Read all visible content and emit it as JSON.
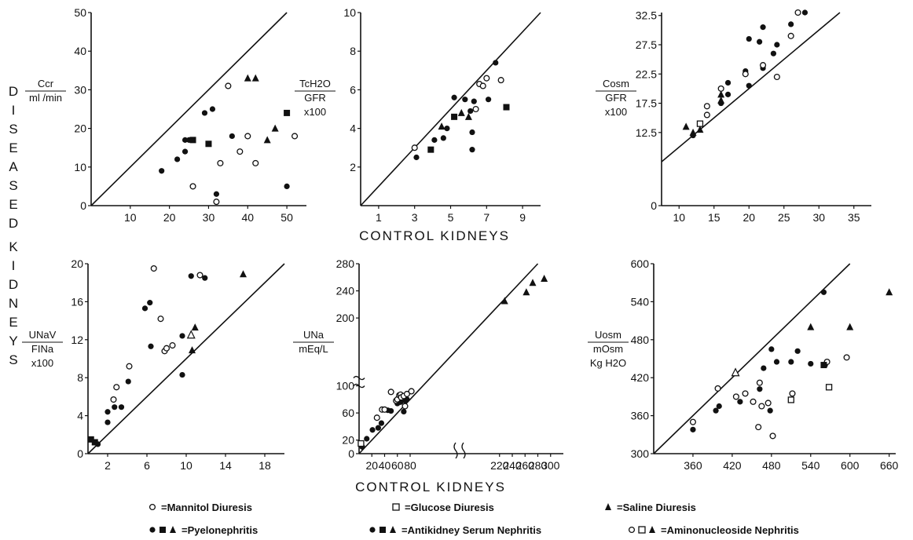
{
  "figure": {
    "left_label": "DISEASED",
    "left_label2": "KIDNEYS",
    "xlabel_top": "CONTROL KIDNEYS",
    "xlabel_bottom": "CONTROL KIDNEYS"
  },
  "legend": [
    {
      "symbols": "○",
      "text": "=Mannitol Diuresis"
    },
    {
      "symbols": "□",
      "text": "=Glucose Diuresis"
    },
    {
      "symbols": "▲",
      "text": "=Saline Diuresis"
    },
    {
      "symbols": "●■▲",
      "text": "=Pyelonephritis"
    },
    {
      "symbols": "●■▲",
      "text": "=Antikidney Serum Nephritis"
    },
    {
      "symbols": "○□▲",
      "text": "=Aminonucleoside Nephritis"
    }
  ],
  "chart_data": [
    {
      "type": "scatter",
      "ylabel_lines": [
        "Ccr",
        "ml /min"
      ],
      "xlim": [
        0,
        55
      ],
      "ylim": [
        0,
        50
      ],
      "xticks": [
        10,
        20,
        30,
        40,
        50
      ],
      "yticks": [
        0,
        10,
        20,
        30,
        40,
        50
      ],
      "identity_line": true,
      "series": [
        {
          "marker": "filled-circle",
          "points": [
            [
              18,
              9
            ],
            [
              22,
              12
            ],
            [
              24,
              14
            ],
            [
              24,
              17
            ],
            [
              25,
              17
            ],
            [
              29,
              24
            ],
            [
              31,
              25
            ],
            [
              32,
              3
            ],
            [
              36,
              18
            ],
            [
              50,
              5
            ]
          ]
        },
        {
          "marker": "open-circle",
          "points": [
            [
              26,
              5
            ],
            [
              32,
              1
            ],
            [
              33,
              11
            ],
            [
              35,
              31
            ],
            [
              38,
              14
            ],
            [
              40,
              18
            ],
            [
              42,
              11
            ],
            [
              52,
              18
            ]
          ]
        },
        {
          "marker": "filled-square",
          "points": [
            [
              26,
              17
            ],
            [
              30,
              16
            ],
            [
              50,
              24
            ]
          ]
        },
        {
          "marker": "filled-triangle",
          "points": [
            [
              40,
              33
            ],
            [
              42,
              33
            ],
            [
              45,
              17
            ],
            [
              47,
              20
            ]
          ]
        }
      ]
    },
    {
      "type": "scatter",
      "ylabel_lines": [
        "TcH2O",
        "GFR",
        "x100"
      ],
      "xlim": [
        0,
        10
      ],
      "ylim": [
        0,
        10
      ],
      "xticks": [
        1,
        3,
        5,
        7,
        9
      ],
      "yticks": [
        2,
        4,
        6,
        8,
        10
      ],
      "identity_line": true,
      "series": [
        {
          "marker": "filled-circle",
          "points": [
            [
              3.1,
              2.5
            ],
            [
              4.1,
              3.4
            ],
            [
              4.6,
              3.5
            ],
            [
              4.8,
              4.0
            ],
            [
              5.2,
              5.6
            ],
            [
              5.8,
              5.5
            ],
            [
              6.1,
              4.9
            ],
            [
              6.2,
              2.9
            ],
            [
              6.2,
              3.8
            ],
            [
              6.3,
              5.4
            ],
            [
              7.1,
              5.5
            ],
            [
              7.5,
              7.4
            ]
          ]
        },
        {
          "marker": "open-circle",
          "points": [
            [
              3.0,
              3.0
            ],
            [
              6.4,
              5.0
            ],
            [
              6.6,
              6.3
            ],
            [
              6.8,
              6.2
            ],
            [
              7.0,
              6.6
            ],
            [
              7.8,
              6.5
            ]
          ]
        },
        {
          "marker": "filled-square",
          "points": [
            [
              3.9,
              2.9
            ],
            [
              5.2,
              4.6
            ],
            [
              8.1,
              5.1
            ]
          ]
        },
        {
          "marker": "filled-triangle",
          "points": [
            [
              4.5,
              4.1
            ],
            [
              5.6,
              4.8
            ],
            [
              6.0,
              4.6
            ]
          ]
        }
      ]
    },
    {
      "type": "scatter",
      "ylabel_lines": [
        "Cosm",
        "GFR",
        "x100"
      ],
      "xlim": [
        7.5,
        37.5
      ],
      "ylim": [
        0,
        33
      ],
      "xticks": [
        10,
        15,
        20,
        25,
        30,
        35
      ],
      "yticks": [
        0,
        12.5,
        17.5,
        22.5,
        27.5,
        32.5
      ],
      "identity_line": true,
      "series": [
        {
          "marker": "filled-circle",
          "points": [
            [
              12,
              12
            ],
            [
              16,
              17.5
            ],
            [
              17,
              19
            ],
            [
              17,
              21
            ],
            [
              19.5,
              23
            ],
            [
              20,
              20.5
            ],
            [
              20,
              28.5
            ],
            [
              21.5,
              28
            ],
            [
              22,
              23.5
            ],
            [
              22,
              30.5
            ],
            [
              23.5,
              26
            ],
            [
              24,
              27.5
            ],
            [
              26,
              31
            ],
            [
              28,
              33
            ]
          ]
        },
        {
          "marker": "open-circle",
          "points": [
            [
              14,
              15.5
            ],
            [
              14,
              17
            ],
            [
              16,
              20
            ],
            [
              19.5,
              22.5
            ],
            [
              22,
              24
            ],
            [
              24,
              22
            ],
            [
              26,
              29
            ],
            [
              27,
              33
            ]
          ]
        },
        {
          "marker": "open-square",
          "points": [
            [
              13,
              14
            ]
          ]
        },
        {
          "marker": "filled-triangle",
          "points": [
            [
              11,
              13.5
            ],
            [
              12,
              12.5
            ],
            [
              13,
              13
            ],
            [
              16,
              18
            ],
            [
              16,
              19
            ]
          ]
        }
      ]
    },
    {
      "type": "scatter",
      "ylabel_lines": [
        "UNaV",
        "FINa",
        "x100"
      ],
      "xlim": [
        0,
        20
      ],
      "ylim": [
        0,
        20
      ],
      "xticks": [
        2,
        6,
        10,
        14,
        18
      ],
      "yticks": [
        0,
        4,
        8,
        12,
        16,
        20
      ],
      "identity_line": true,
      "series": [
        {
          "marker": "filled-circle",
          "points": [
            [
              1.0,
              1.0
            ],
            [
              2.0,
              3.3
            ],
            [
              2.0,
              4.4
            ],
            [
              2.7,
              4.9
            ],
            [
              3.4,
              4.9
            ],
            [
              4.1,
              7.6
            ],
            [
              5.8,
              15.3
            ],
            [
              6.3,
              15.9
            ],
            [
              6.4,
              11.3
            ],
            [
              9.6,
              8.3
            ],
            [
              9.6,
              12.4
            ],
            [
              10.5,
              18.7
            ],
            [
              11.9,
              18.5
            ]
          ]
        },
        {
          "marker": "open-circle",
          "points": [
            [
              2.6,
              5.7
            ],
            [
              2.9,
              7.0
            ],
            [
              4.2,
              9.2
            ],
            [
              6.7,
              19.5
            ],
            [
              7.4,
              14.2
            ],
            [
              7.8,
              10.8
            ],
            [
              8.0,
              11.1
            ],
            [
              8.6,
              11.4
            ],
            [
              11.4,
              18.8
            ]
          ]
        },
        {
          "marker": "filled-square",
          "points": [
            [
              0.3,
              1.5
            ],
            [
              0.7,
              1.2
            ]
          ]
        },
        {
          "marker": "filled-triangle",
          "points": [
            [
              10.6,
              10.9
            ],
            [
              10.9,
              13.3
            ],
            [
              15.8,
              18.9
            ]
          ]
        },
        {
          "marker": "open-triangle",
          "points": [
            [
              10.5,
              12.5
            ]
          ]
        }
      ]
    },
    {
      "type": "scatter",
      "ylabel_lines": [
        "UNa",
        "mEq/L"
      ],
      "xlim": [
        0,
        320
      ],
      "ylim": [
        0,
        280
      ],
      "xticks": [
        20,
        40,
        60,
        80,
        220,
        240,
        260,
        280,
        300
      ],
      "yticks": [
        0,
        20,
        60,
        100,
        200,
        240,
        280
      ],
      "axis_breaks": true,
      "identity_line": true,
      "series": [
        {
          "marker": "filled-circle",
          "points": [
            [
              5,
              10
            ],
            [
              12,
              22
            ],
            [
              21,
              35
            ],
            [
              30,
              38
            ],
            [
              35,
              45
            ],
            [
              45,
              64
            ],
            [
              50,
              63
            ],
            [
              60,
              74
            ],
            [
              65,
              76
            ],
            [
              70,
              62
            ],
            [
              72,
              78
            ],
            [
              75,
              80
            ]
          ]
        },
        {
          "marker": "open-circle",
          "points": [
            [
              28,
              53
            ],
            [
              36,
              65
            ],
            [
              40,
              65
            ],
            [
              50,
              91
            ],
            [
              58,
              78
            ],
            [
              60,
              80
            ],
            [
              63,
              86
            ],
            [
              65,
              87
            ],
            [
              66,
              83
            ],
            [
              70,
              85
            ],
            [
              72,
              70
            ],
            [
              75,
              88
            ],
            [
              82,
              92
            ]
          ]
        },
        {
          "marker": "open-square",
          "points": [
            [
              3,
              15
            ]
          ]
        },
        {
          "marker": "filled-triangle",
          "points": [
            [
              228,
              225
            ],
            [
              262,
              238
            ],
            [
              272,
              252
            ],
            [
              290,
              258
            ]
          ]
        }
      ]
    },
    {
      "type": "scatter",
      "ylabel_lines": [
        "Uosm",
        "mOsm",
        "Kg H2O"
      ],
      "xlim": [
        300,
        670
      ],
      "ylim": [
        300,
        600
      ],
      "xticks": [
        360,
        420,
        480,
        540,
        600,
        660
      ],
      "yticks": [
        300,
        360,
        420,
        480,
        540,
        600
      ],
      "identity_line": true,
      "series": [
        {
          "marker": "filled-circle",
          "points": [
            [
              360,
              338
            ],
            [
              395,
              368
            ],
            [
              400,
              375
            ],
            [
              432,
              382
            ],
            [
              462,
              402
            ],
            [
              468,
              435
            ],
            [
              478,
              368
            ],
            [
              480,
              465
            ],
            [
              488,
              445
            ],
            [
              510,
              445
            ],
            [
              520,
              462
            ],
            [
              540,
              442
            ],
            [
              560,
              555
            ],
            [
              562,
              440
            ]
          ]
        },
        {
          "marker": "open-circle",
          "points": [
            [
              360,
              350
            ],
            [
              398,
              403
            ],
            [
              426,
              390
            ],
            [
              440,
              395
            ],
            [
              452,
              382
            ],
            [
              460,
              342
            ],
            [
              462,
              412
            ],
            [
              465,
              375
            ],
            [
              475,
              380
            ],
            [
              482,
              328
            ],
            [
              512,
              395
            ],
            [
              565,
              445
            ],
            [
              595,
              452
            ]
          ]
        },
        {
          "marker": "open-square",
          "points": [
            [
              510,
              385
            ],
            [
              568,
              405
            ]
          ]
        },
        {
          "marker": "filled-square",
          "points": [
            [
              560,
              440
            ]
          ]
        },
        {
          "marker": "filled-triangle",
          "points": [
            [
              540,
              500
            ],
            [
              600,
              500
            ],
            [
              660,
              555
            ]
          ]
        },
        {
          "marker": "open-triangle",
          "points": [
            [
              425,
              428
            ]
          ]
        }
      ]
    }
  ]
}
